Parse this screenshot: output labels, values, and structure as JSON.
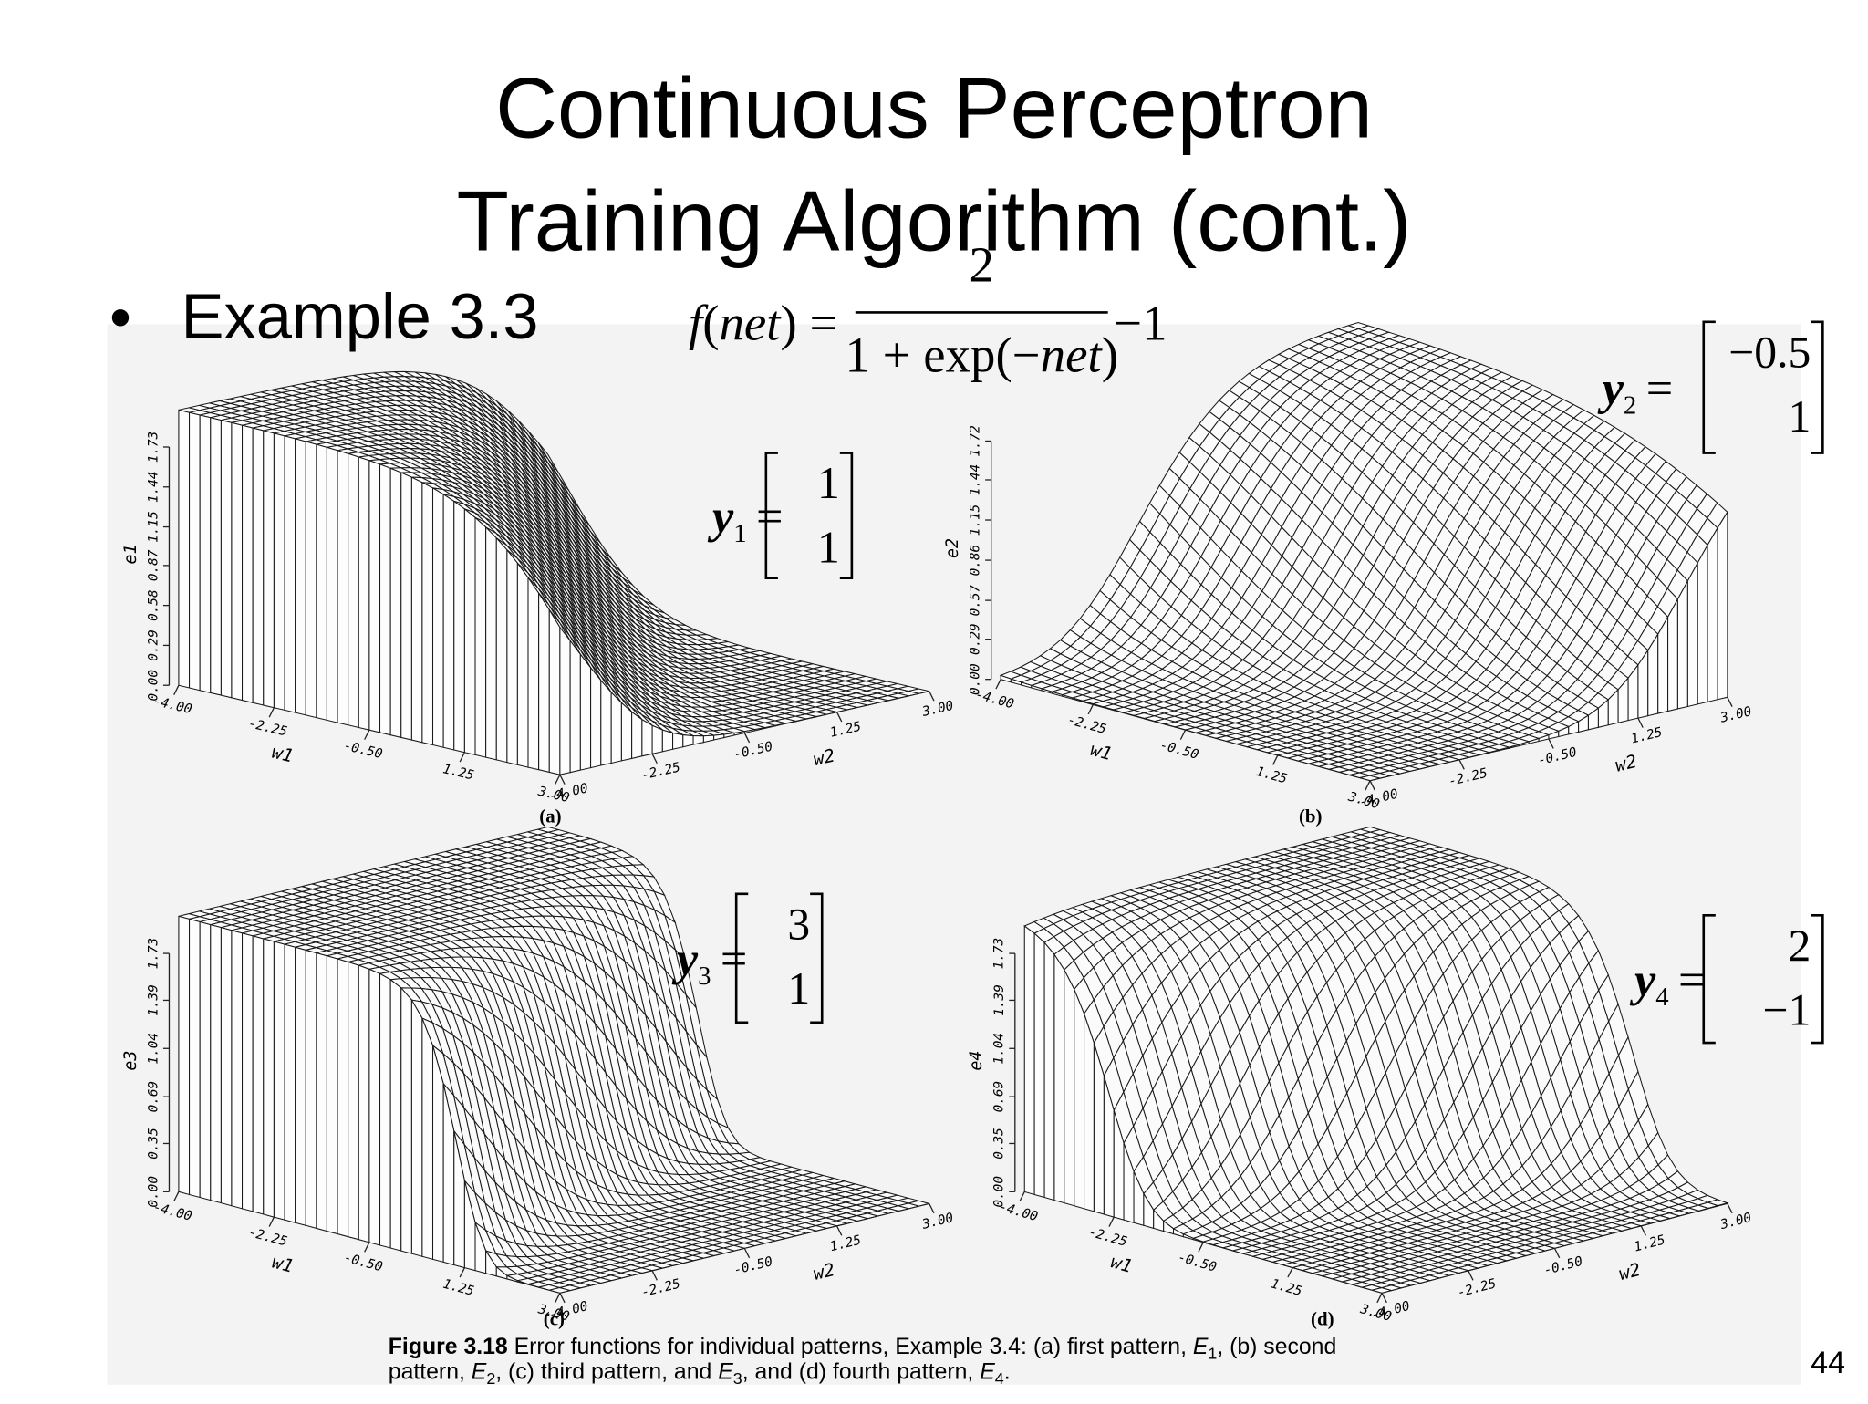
{
  "title": {
    "line1": "Continuous Perceptron",
    "line2": "Training Algorithm (cont.)"
  },
  "bullet": {
    "marker": "•",
    "text": "Example 3.3"
  },
  "formula": {
    "lhs": [
      {
        "text": "f",
        "style": "italic"
      },
      {
        "text": "(",
        "style": "plain"
      },
      {
        "text": "net",
        "style": "italic"
      },
      {
        "text": ")",
        "style": "plain"
      },
      {
        "text": " =",
        "style": "plain"
      }
    ],
    "numerator": [
      {
        "text": "2",
        "style": "plain"
      }
    ],
    "denominator": [
      {
        "text": "1 + exp(−",
        "style": "plain"
      },
      {
        "text": "net",
        "style": "italic"
      },
      {
        "text": ")",
        "style": "plain"
      }
    ],
    "tail": [
      {
        "text": "−1",
        "style": "plain"
      }
    ]
  },
  "panels": [
    {
      "label": "(a)",
      "zlabel": "e1",
      "w1label": "w1",
      "w2label": "w2",
      "zticks": [
        {
          "value": 0,
          "label": "0.00"
        },
        {
          "value": 0.29,
          "label": "0.29"
        },
        {
          "value": 0.58,
          "label": "0.58"
        },
        {
          "value": 0.87,
          "label": "0.87"
        },
        {
          "value": 1.15,
          "label": "1.15"
        },
        {
          "value": 1.44,
          "label": "1.44"
        },
        {
          "value": 1.73,
          "label": "1.73"
        }
      ],
      "w1ticks": [
        {
          "value": -4,
          "label": "-4.00"
        },
        {
          "value": -2.25,
          "label": "-2.25"
        },
        {
          "value": -0.5,
          "label": "-0.50"
        },
        {
          "value": 1.25,
          "label": "1.25"
        },
        {
          "value": 3,
          "label": "3.00"
        }
      ],
      "w2ticks": [
        {
          "value": -4,
          "label": "-4.00"
        },
        {
          "value": -2.25,
          "label": "-2.25"
        },
        {
          "value": -0.5,
          "label": "-0.50"
        },
        {
          "value": 1.25,
          "label": "1.25"
        },
        {
          "value": 3,
          "label": "3.00"
        }
      ],
      "vector": {
        "name": "y",
        "sub": "1",
        "eq": "=",
        "entries": [
          "1",
          "1"
        ]
      }
    },
    {
      "label": "(b)",
      "zlabel": "e2",
      "w1label": "w1",
      "w2label": "w2",
      "zticks": [
        {
          "value": 0,
          "label": "0.00"
        },
        {
          "value": 0.29,
          "label": "0.29"
        },
        {
          "value": 0.57,
          "label": "0.57"
        },
        {
          "value": 0.86,
          "label": "0.86"
        },
        {
          "value": 1.15,
          "label": "1.15"
        },
        {
          "value": 1.44,
          "label": "1.44"
        },
        {
          "value": 1.72,
          "label": "1.72"
        }
      ],
      "w1ticks": [
        {
          "value": -4,
          "label": "-4.00"
        },
        {
          "value": -2.25,
          "label": "-2.25"
        },
        {
          "value": -0.5,
          "label": "-0.50"
        },
        {
          "value": 1.25,
          "label": "1.25"
        },
        {
          "value": 3,
          "label": "3.00"
        }
      ],
      "w2ticks": [
        {
          "value": -4,
          "label": "-4.00"
        },
        {
          "value": -2.25,
          "label": "-2.25"
        },
        {
          "value": -0.5,
          "label": "-0.50"
        },
        {
          "value": 1.25,
          "label": "1.25"
        },
        {
          "value": 3,
          "label": "3.00"
        }
      ],
      "vector": {
        "name": "y",
        "sub": "2",
        "eq": "=",
        "entries": [
          "−0.5",
          "1"
        ]
      }
    },
    {
      "label": "(c)",
      "zlabel": "e3",
      "w1label": "w1",
      "w2label": "w2",
      "zticks": [
        {
          "value": 0,
          "label": "0.00"
        },
        {
          "value": 0.35,
          "label": "0.35"
        },
        {
          "value": 0.69,
          "label": "0.69"
        },
        {
          "value": 1.04,
          "label": "1.04"
        },
        {
          "value": 1.39,
          "label": "1.39"
        },
        {
          "value": 1.73,
          "label": "1.73"
        }
      ],
      "w1ticks": [
        {
          "value": -4,
          "label": "-4.00"
        },
        {
          "value": -2.25,
          "label": "-2.25"
        },
        {
          "value": -0.5,
          "label": "-0.50"
        },
        {
          "value": 1.25,
          "label": "1.25"
        },
        {
          "value": 3,
          "label": "3.00"
        }
      ],
      "w2ticks": [
        {
          "value": -4,
          "label": "-4.00"
        },
        {
          "value": -2.25,
          "label": "-2.25"
        },
        {
          "value": -0.5,
          "label": "-0.50"
        },
        {
          "value": 1.25,
          "label": "1.25"
        },
        {
          "value": 3,
          "label": "3.00"
        }
      ],
      "vector": {
        "name": "y",
        "sub": "3",
        "eq": "=",
        "entries": [
          "3",
          "1"
        ]
      }
    },
    {
      "label": "(d)",
      "zlabel": "e4",
      "w1label": "w1",
      "w2label": "w2",
      "zticks": [
        {
          "value": 0,
          "label": "0.00"
        },
        {
          "value": 0.35,
          "label": "0.35"
        },
        {
          "value": 0.69,
          "label": "0.69"
        },
        {
          "value": 1.04,
          "label": "1.04"
        },
        {
          "value": 1.39,
          "label": "1.39"
        },
        {
          "value": 1.73,
          "label": "1.73"
        }
      ],
      "w1ticks": [
        {
          "value": -4,
          "label": "-4.00"
        },
        {
          "value": -2.25,
          "label": "-2.25"
        },
        {
          "value": -0.5,
          "label": "-0.50"
        },
        {
          "value": 1.25,
          "label": "1.25"
        },
        {
          "value": 3,
          "label": "3.00"
        }
      ],
      "w2ticks": [
        {
          "value": -4,
          "label": "-4.00"
        },
        {
          "value": -2.25,
          "label": "-2.25"
        },
        {
          "value": -0.5,
          "label": "-0.50"
        },
        {
          "value": 1.25,
          "label": "1.25"
        },
        {
          "value": 3,
          "label": "3.00"
        }
      ],
      "vector": {
        "name": "y",
        "sub": "4",
        "eq": "=",
        "entries": [
          "2",
          "−1"
        ]
      }
    }
  ],
  "caption": {
    "lines": [
      [
        {
          "text": "Figure 3.18",
          "style": "bold"
        },
        {
          "text": "   Error functions for individual patterns, Example 3.4: (a) first pattern, ",
          "style": "plain"
        },
        {
          "text": "E",
          "style": "italic"
        },
        {
          "text": "1",
          "style": "sub"
        },
        {
          "text": ", (b) second",
          "style": "plain"
        }
      ],
      [
        {
          "text": "pattern, ",
          "style": "plain"
        },
        {
          "text": "E",
          "style": "italic"
        },
        {
          "text": "2",
          "style": "sub"
        },
        {
          "text": ", (c) third pattern, and ",
          "style": "plain"
        },
        {
          "text": "E",
          "style": "italic"
        },
        {
          "text": "3",
          "style": "sub"
        },
        {
          "text": ", and (d) fourth pattern, ",
          "style": "plain"
        },
        {
          "text": "E",
          "style": "italic"
        },
        {
          "text": "4",
          "style": "sub"
        },
        {
          "text": ".",
          "style": "plain"
        }
      ]
    ]
  },
  "page_number": "44"
}
